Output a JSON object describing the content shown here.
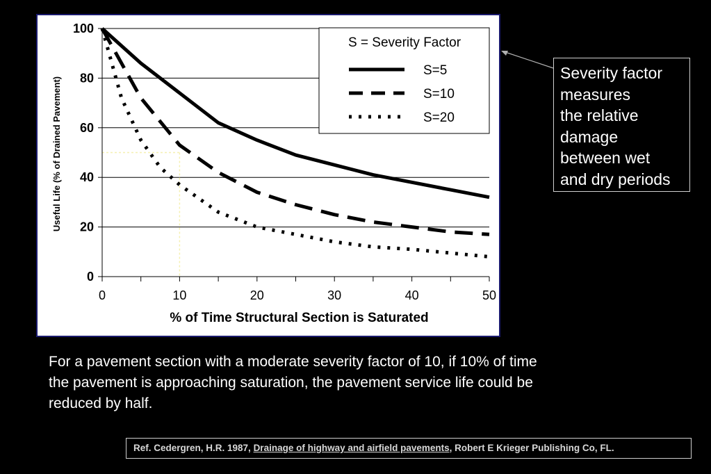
{
  "chart_data": {
    "type": "line",
    "title": "",
    "xlabel": "% of Time Structural Section is Saturated",
    "ylabel": "Useful Life (% of Drained Pavement)",
    "xlim": [
      0,
      50
    ],
    "ylim": [
      0,
      100
    ],
    "xticks": [
      0,
      10,
      20,
      30,
      40,
      50
    ],
    "yticks": [
      0,
      20,
      40,
      60,
      80,
      100
    ],
    "grid": "horizontal",
    "legend": {
      "title": "S = Severity Factor",
      "position": "top-right"
    },
    "series": [
      {
        "name": "S=5",
        "style": "solid",
        "x": [
          0,
          5,
          10,
          15,
          20,
          25,
          30,
          35,
          40,
          45,
          50
        ],
        "y": [
          100,
          86,
          74,
          62,
          55,
          49,
          45,
          41,
          38,
          35,
          32
        ]
      },
      {
        "name": "S=10",
        "style": "dashed",
        "x": [
          0,
          5,
          10,
          15,
          20,
          25,
          30,
          35,
          40,
          45,
          50
        ],
        "y": [
          100,
          72,
          53,
          42,
          34,
          29,
          25,
          22,
          20,
          18,
          17
        ]
      },
      {
        "name": "S=20",
        "style": "dotted",
        "x": [
          0,
          2.5,
          5,
          7.5,
          10,
          15,
          20,
          25,
          30,
          35,
          40,
          45,
          50
        ],
        "y": [
          100,
          72,
          55,
          44,
          37,
          26,
          20,
          17,
          14,
          12,
          11,
          9.5,
          8
        ]
      }
    ],
    "reference_line": {
      "x": 10,
      "y": 50,
      "color": "#f5f0b0"
    }
  },
  "callout": {
    "lines": [
      "Severity factor",
      "measures",
      "the relative",
      "damage",
      "between wet",
      "and dry periods"
    ]
  },
  "caption": {
    "lines": [
      "For a pavement section with a moderate severity factor of 10,  if 10% of time",
      "the pavement is approaching saturation, the pavement service life could be",
      "reduced by half."
    ]
  },
  "reference": {
    "prefix": "Ref. Cedergren, H.R. 1987, ",
    "book": "Drainage of highway and airfield pavements",
    "suffix": ", Robert E Krieger Publishing Co, FL."
  },
  "colors": {
    "background": "#000000",
    "panel": "#ffffff",
    "panel_border": "#1a1a6e",
    "arrow": "#b0b0b0"
  }
}
